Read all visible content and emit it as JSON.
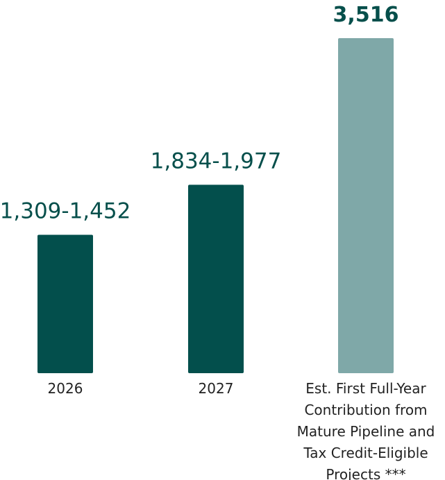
{
  "colors": {
    "primary_bar": "#034f4c",
    "highlight_bar": "#7fa8a8",
    "value_text": "#064f4b",
    "category_text": "#222222"
  },
  "chart_data": {
    "type": "bar",
    "categories": [
      "2026",
      "2027",
      [
        "Est. First Full-Year",
        "Contribution from",
        "Mature Pipeline and",
        "Tax Credit-Eligible",
        "Projects ***"
      ]
    ],
    "values": [
      1452,
      1977,
      3516
    ],
    "ranges": [
      [
        1309,
        1452
      ],
      [
        1834,
        1977
      ],
      null
    ],
    "data_labels": [
      "1,309-1,452",
      "1,834-1,977",
      "3,516"
    ],
    "bar_colors": [
      "#034f4c",
      "#034f4c",
      "#7fa8a8"
    ],
    "emphasized_label": [
      false,
      false,
      true
    ],
    "ylim": [
      0,
      3516
    ],
    "grid": false,
    "legend": "none"
  }
}
